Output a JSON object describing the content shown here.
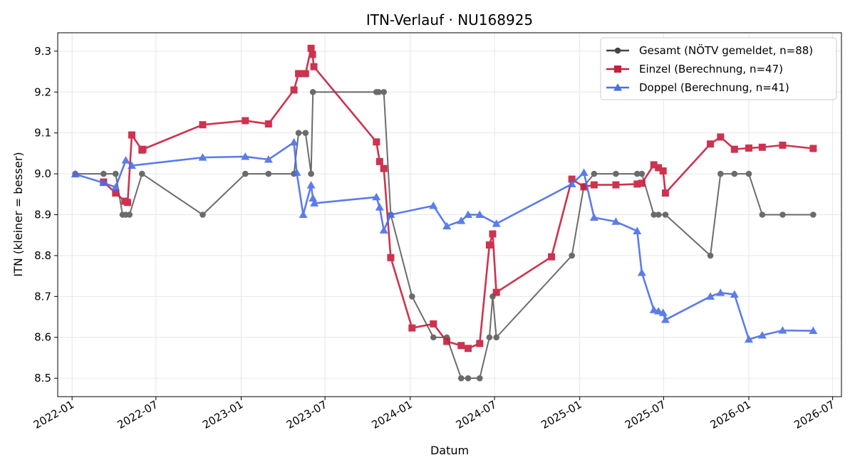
{
  "chart_data": {
    "type": "line",
    "title": "ITN-Verlauf · NU168925",
    "xlabel": "Datum",
    "ylabel": "ITN  (kleiner = besser)",
    "xlim": [
      "2021-12-01",
      "2026-07-20"
    ],
    "ylim": [
      8.455,
      9.345
    ],
    "x_ticks": [
      "2022-01",
      "2022-07",
      "2023-01",
      "2023-07",
      "2024-01",
      "2024-07",
      "2025-01",
      "2025-07",
      "2026-01",
      "2026-07"
    ],
    "y_ticks": [
      8.5,
      8.6,
      8.7,
      8.8,
      8.9,
      9.0,
      9.1,
      9.2,
      9.3
    ],
    "y_tick_labels": [
      "8.5",
      "8.6",
      "8.7",
      "8.8",
      "8.9",
      "9.0",
      "9.1",
      "9.2",
      "9.3"
    ],
    "grid": true,
    "legend_position": "top-right",
    "series": [
      {
        "name": "Gesamt (NÖTV gemeldet, n=88)",
        "color": "#444444",
        "marker": "circle",
        "points": [
          [
            "2022-01-08",
            9.0
          ],
          [
            "2022-03-10",
            9.0
          ],
          [
            "2022-04-05",
            9.0
          ],
          [
            "2022-04-20",
            8.9
          ],
          [
            "2022-04-27",
            8.9
          ],
          [
            "2022-05-05",
            8.9
          ],
          [
            "2022-06-01",
            9.0
          ],
          [
            "2022-10-10",
            8.9
          ],
          [
            "2023-01-10",
            9.0
          ],
          [
            "2023-03-01",
            9.0
          ],
          [
            "2023-04-25",
            9.0
          ],
          [
            "2023-05-05",
            9.1
          ],
          [
            "2023-05-20",
            9.1
          ],
          [
            "2023-06-01",
            9.0
          ],
          [
            "2023-06-05",
            9.2
          ],
          [
            "2023-10-20",
            9.2
          ],
          [
            "2023-10-25",
            9.2
          ],
          [
            "2023-11-05",
            9.2
          ],
          [
            "2023-11-20",
            8.9
          ],
          [
            "2024-01-05",
            8.7
          ],
          [
            "2024-02-20",
            8.6
          ],
          [
            "2024-03-20",
            8.6
          ],
          [
            "2024-04-20",
            8.5
          ],
          [
            "2024-05-05",
            8.5
          ],
          [
            "2024-05-30",
            8.5
          ],
          [
            "2024-06-20",
            8.6
          ],
          [
            "2024-06-27",
            8.7
          ],
          [
            "2024-07-05",
            8.6
          ],
          [
            "2024-12-15",
            8.8
          ],
          [
            "2025-01-10",
            8.97
          ],
          [
            "2025-02-01",
            9.0
          ],
          [
            "2025-03-20",
            9.0
          ],
          [
            "2025-05-05",
            9.0
          ],
          [
            "2025-05-15",
            9.0
          ],
          [
            "2025-06-10",
            8.9
          ],
          [
            "2025-06-20",
            8.9
          ],
          [
            "2025-07-05",
            8.9
          ],
          [
            "2025-10-10",
            8.8
          ],
          [
            "2025-11-01",
            9.0
          ],
          [
            "2025-12-01",
            9.0
          ],
          [
            "2026-01-01",
            9.0
          ],
          [
            "2026-01-30",
            8.9
          ],
          [
            "2026-03-15",
            8.9
          ],
          [
            "2026-05-20",
            8.9
          ]
        ]
      },
      {
        "name": "Einzel (Berechnung, n=47)",
        "color": "#c81e3c",
        "marker": "square",
        "points": [
          [
            "2022-03-10",
            8.98
          ],
          [
            "2022-04-05",
            8.953
          ],
          [
            "2022-04-25",
            8.933
          ],
          [
            "2022-05-01",
            8.93
          ],
          [
            "2022-05-10",
            9.095
          ],
          [
            "2022-06-01",
            9.058
          ],
          [
            "2022-06-03",
            9.06
          ],
          [
            "2022-10-10",
            9.12
          ],
          [
            "2023-01-10",
            9.13
          ],
          [
            "2023-03-01",
            9.122
          ],
          [
            "2023-04-25",
            9.205
          ],
          [
            "2023-05-05",
            9.245
          ],
          [
            "2023-05-20",
            9.245
          ],
          [
            "2023-06-01",
            9.307
          ],
          [
            "2023-06-04",
            9.292
          ],
          [
            "2023-06-07",
            9.262
          ],
          [
            "2023-10-20",
            9.078
          ],
          [
            "2023-10-27",
            9.03
          ],
          [
            "2023-11-05",
            9.013
          ],
          [
            "2023-11-20",
            8.795
          ],
          [
            "2024-01-05",
            8.623
          ],
          [
            "2024-02-20",
            8.633
          ],
          [
            "2024-03-20",
            8.59
          ],
          [
            "2024-04-20",
            8.58
          ],
          [
            "2024-05-05",
            8.573
          ],
          [
            "2024-05-30",
            8.585
          ],
          [
            "2024-06-20",
            8.826
          ],
          [
            "2024-06-27",
            8.853
          ],
          [
            "2024-07-05",
            8.71
          ],
          [
            "2024-11-01",
            8.797
          ],
          [
            "2024-12-15",
            8.987
          ],
          [
            "2025-01-10",
            8.968
          ],
          [
            "2025-02-01",
            8.973
          ],
          [
            "2025-03-20",
            8.973
          ],
          [
            "2025-05-05",
            8.975
          ],
          [
            "2025-05-15",
            8.977
          ],
          [
            "2025-06-10",
            9.022
          ],
          [
            "2025-06-20",
            9.015
          ],
          [
            "2025-06-30",
            9.007
          ],
          [
            "2025-07-05",
            8.953
          ],
          [
            "2025-10-10",
            9.073
          ],
          [
            "2025-11-01",
            9.09
          ],
          [
            "2025-12-01",
            9.06
          ],
          [
            "2026-01-01",
            9.063
          ],
          [
            "2026-01-30",
            9.065
          ],
          [
            "2026-03-15",
            9.07
          ],
          [
            "2026-05-20",
            9.062
          ]
        ]
      },
      {
        "name": "Doppel (Berechnung, n=41)",
        "color": "#4a6ee8",
        "marker": "triangle",
        "points": [
          [
            "2022-01-08",
            8.999
          ],
          [
            "2022-03-10",
            8.978
          ],
          [
            "2022-04-05",
            8.967
          ],
          [
            "2022-04-27",
            9.033
          ],
          [
            "2022-05-10",
            9.02
          ],
          [
            "2022-10-10",
            9.04
          ],
          [
            "2023-01-10",
            9.042
          ],
          [
            "2023-03-01",
            9.035
          ],
          [
            "2023-04-25",
            9.077
          ],
          [
            "2023-05-01",
            9.003
          ],
          [
            "2023-05-15",
            8.9
          ],
          [
            "2023-06-01",
            8.972
          ],
          [
            "2023-06-05",
            8.94
          ],
          [
            "2023-06-08",
            8.928
          ],
          [
            "2023-10-20",
            8.943
          ],
          [
            "2023-10-27",
            8.918
          ],
          [
            "2023-11-05",
            8.862
          ],
          [
            "2023-11-20",
            8.9
          ],
          [
            "2024-02-20",
            8.922
          ],
          [
            "2024-03-20",
            8.872
          ],
          [
            "2024-04-20",
            8.885
          ],
          [
            "2024-05-05",
            8.9
          ],
          [
            "2024-05-30",
            8.9
          ],
          [
            "2024-07-05",
            8.878
          ],
          [
            "2024-12-15",
            8.975
          ],
          [
            "2025-01-10",
            9.003
          ],
          [
            "2025-02-01",
            8.893
          ],
          [
            "2025-03-20",
            8.883
          ],
          [
            "2025-05-05",
            8.86
          ],
          [
            "2025-05-15",
            8.758
          ],
          [
            "2025-06-10",
            8.667
          ],
          [
            "2025-06-20",
            8.664
          ],
          [
            "2025-06-30",
            8.66
          ],
          [
            "2025-07-05",
            8.643
          ],
          [
            "2025-10-10",
            8.7
          ],
          [
            "2025-11-01",
            8.709
          ],
          [
            "2025-12-01",
            8.705
          ],
          [
            "2026-01-01",
            8.595
          ],
          [
            "2026-01-30",
            8.605
          ],
          [
            "2026-03-15",
            8.617
          ],
          [
            "2026-05-20",
            8.616
          ]
        ]
      }
    ]
  }
}
